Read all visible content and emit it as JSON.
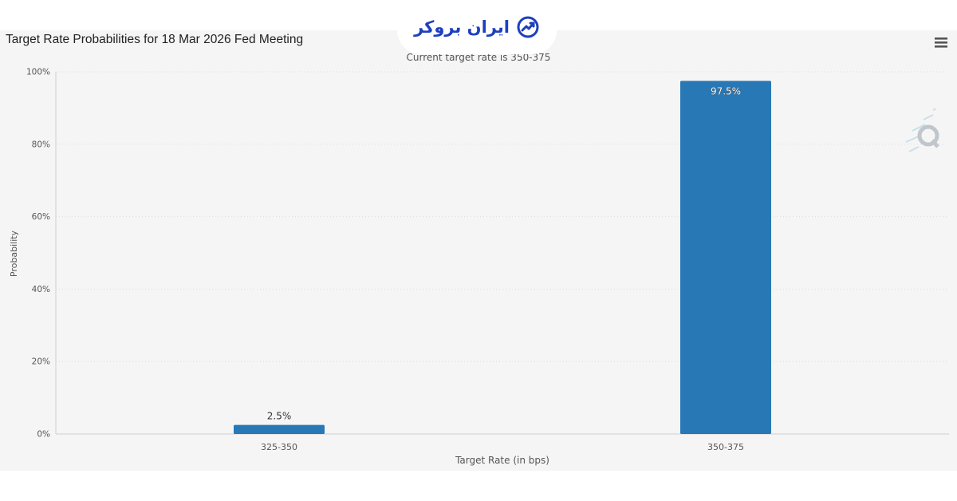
{
  "brand": {
    "logo_text": "ایران بروکر",
    "logo_icon": "growth-chart-icon",
    "accent": "#1d3fbf"
  },
  "title": "Target Rate Probabilities for 18 Mar 2026 Fed Meeting",
  "menu_icon": "hamburger-menu-icon",
  "watermark_icon": "q-logo-icon",
  "chart_data": {
    "type": "bar",
    "subtitle": "Current target rate is 350-375",
    "categories": [
      "325-350",
      "350-375"
    ],
    "values": [
      2.5,
      97.5
    ],
    "data_labels": [
      "2.5%",
      "97.5%"
    ],
    "xlabel": "Target Rate (in bps)",
    "ylabel": "Probability",
    "ylim": [
      0,
      100
    ],
    "y_ticks": [
      0,
      20,
      40,
      60,
      80,
      100
    ],
    "y_tick_labels": [
      "0%",
      "20%",
      "40%",
      "60%",
      "80%",
      "100%"
    ],
    "grid": true,
    "bar_color": "#2878b5",
    "legend": "none"
  }
}
